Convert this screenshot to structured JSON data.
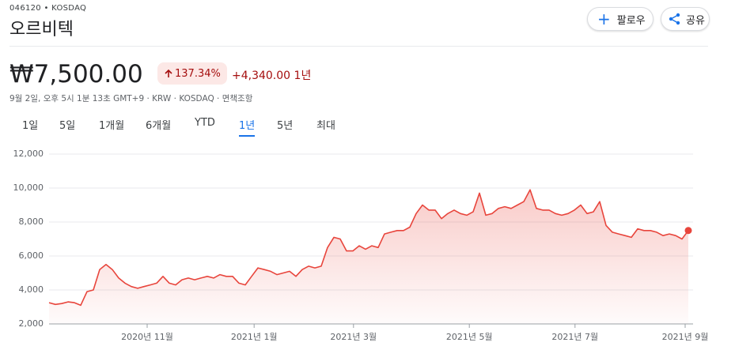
{
  "header": {
    "ticker": "046120 • KOSDAQ",
    "name": "오르비텍"
  },
  "buttons": {
    "follow": "팔로우",
    "share": "공유"
  },
  "quote": {
    "price": "₩7,500.00",
    "change_percent": "137.34%",
    "change_value": "+4,340.00",
    "change_period": "1년",
    "timestamp": "9월 2일, 오후 5시 1분 13초 GMT+9 · KRW · KOSDAQ · 면책조항"
  },
  "tabs": {
    "items": [
      "1일",
      "5일",
      "1개월",
      "6개월",
      "YTD",
      "1년",
      "5년",
      "최대"
    ],
    "selected": 5
  },
  "chart_data": {
    "type": "line",
    "color": "#e8453c",
    "grid": true,
    "values": [
      3250,
      3150,
      3200,
      3300,
      3250,
      3100,
      3900,
      4000,
      5200,
      5500,
      5200,
      4700,
      4400,
      4200,
      4100,
      4200,
      4300,
      4400,
      4800,
      4400,
      4300,
      4600,
      4700,
      4600,
      4700,
      4800,
      4700,
      4900,
      4800,
      4800,
      4400,
      4300,
      4800,
      5300,
      5200,
      5100,
      4900,
      5000,
      5100,
      4800,
      5200,
      5400,
      5300,
      5400,
      6500,
      7100,
      7000,
      6300,
      6300,
      6600,
      6400,
      6600,
      6500,
      7300,
      7400,
      7500,
      7500,
      7700,
      8500,
      9000,
      8700,
      8700,
      8200,
      8500,
      8700,
      8500,
      8400,
      8600,
      9700,
      8400,
      8500,
      8800,
      8900,
      8800,
      9000,
      9200,
      9900,
      8800,
      8700,
      8700,
      8500,
      8400,
      8500,
      8700,
      9000,
      8500,
      8600,
      9200,
      7800,
      7400,
      7300,
      7200,
      7100,
      7600,
      7500,
      7500,
      7400,
      7200,
      7300,
      7200,
      7000,
      7500
    ],
    "xlim": [
      0,
      101
    ],
    "xticks": [
      {
        "value": 15.5,
        "label": "2020년 11월"
      },
      {
        "value": 32.4,
        "label": "2021년 1월"
      },
      {
        "value": 48.1,
        "label": "2021년 3월"
      },
      {
        "value": 66.4,
        "label": "2021년 5월"
      },
      {
        "value": 83.1,
        "label": "2021년 7월"
      },
      {
        "value": 100.5,
        "label": "2021년 9월"
      }
    ],
    "ylim": [
      2000,
      12000
    ],
    "yticks": [
      {
        "value": 2000,
        "label": "2,000"
      },
      {
        "value": 4000,
        "label": "4,000"
      },
      {
        "value": 6000,
        "label": "6,000"
      },
      {
        "value": 8000,
        "label": "8,000"
      },
      {
        "value": 10000,
        "label": "10,000"
      },
      {
        "value": 12000,
        "label": "12,000"
      }
    ]
  }
}
